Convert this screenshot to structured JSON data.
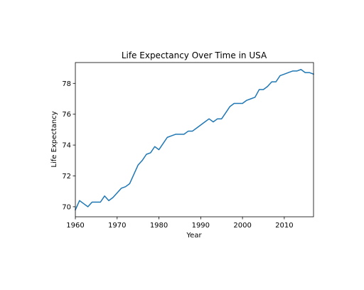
{
  "chart_data": {
    "type": "line",
    "title": "Life Expectancy Over Time in USA",
    "xlabel": "Year",
    "ylabel": "Life Expectancy",
    "xlim": [
      1960,
      2017
    ],
    "ylim": [
      69.35,
      79.35
    ],
    "x_ticks": [
      1960,
      1970,
      1980,
      1990,
      2000,
      2010
    ],
    "y_ticks": [
      70,
      72,
      74,
      76,
      78
    ],
    "grid": false,
    "legend": "none",
    "line_color": "#1f77b4",
    "x": [
      1960,
      1961,
      1962,
      1963,
      1964,
      1965,
      1966,
      1967,
      1968,
      1969,
      1970,
      1971,
      1972,
      1973,
      1974,
      1975,
      1976,
      1977,
      1978,
      1979,
      1980,
      1981,
      1982,
      1983,
      1984,
      1985,
      1986,
      1987,
      1988,
      1989,
      1990,
      1991,
      1992,
      1993,
      1994,
      1995,
      1996,
      1997,
      1998,
      1999,
      2000,
      2001,
      2002,
      2003,
      2004,
      2005,
      2006,
      2007,
      2008,
      2009,
      2010,
      2011,
      2012,
      2013,
      2014,
      2015,
      2016,
      2017
    ],
    "values": [
      69.8,
      70.4,
      70.2,
      70.0,
      70.3,
      70.3,
      70.3,
      70.7,
      70.4,
      70.6,
      70.9,
      71.2,
      71.3,
      71.5,
      72.1,
      72.7,
      73.0,
      73.4,
      73.5,
      73.9,
      73.7,
      74.1,
      74.5,
      74.6,
      74.7,
      74.7,
      74.7,
      74.9,
      74.9,
      75.1,
      75.3,
      75.5,
      75.7,
      75.5,
      75.7,
      75.7,
      76.1,
      76.5,
      76.7,
      76.7,
      76.7,
      76.9,
      77.0,
      77.1,
      77.6,
      77.6,
      77.8,
      78.1,
      78.1,
      78.5,
      78.6,
      78.7,
      78.8,
      78.8,
      78.9,
      78.7,
      78.7,
      78.6
    ]
  }
}
